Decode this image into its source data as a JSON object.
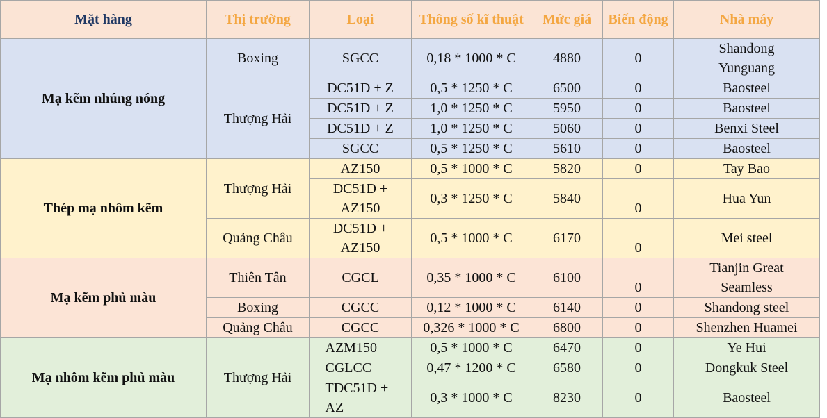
{
  "table": {
    "header": [
      "Mặt hàng",
      "Thị trường",
      "Loại",
      "Thông số kĩ thuật",
      "Mức giá",
      "Biến động",
      "Nhà máy"
    ],
    "groups": [
      {
        "product": "Mạ kẽm nhúng nóng",
        "color": "#d9e1f2",
        "markets": [
          {
            "name": "Boxing",
            "rows": [
              {
                "type": "SGCC",
                "spec": "0,18 * 1000 * C",
                "price": 4880,
                "change": 0,
                "factory": "Shandong Yunguang"
              }
            ]
          },
          {
            "name": "Thượng Hải",
            "rows": [
              {
                "type": "DC51D + Z",
                "spec": "0,5 * 1250 * C",
                "price": 6500,
                "change": 0,
                "factory": "Baosteel"
              },
              {
                "type": "DC51D + Z",
                "spec": "1,0 * 1250 * C",
                "price": 5950,
                "change": 0,
                "factory": "Baosteel"
              },
              {
                "type": "DC51D + Z",
                "spec": "1,0 * 1250 * C",
                "price": 5060,
                "change": 0,
                "factory": "Benxi Steel"
              },
              {
                "type": "SGCC",
                "spec": "0,5 * 1250 * C",
                "price": 5610,
                "change": 0,
                "factory": "Baosteel"
              }
            ]
          }
        ]
      },
      {
        "product": "Thép mạ nhôm kẽm",
        "color": "#fff2cc",
        "markets": [
          {
            "name": "Thượng Hải",
            "rows": [
              {
                "type": "AZ150",
                "spec": "0,5 * 1000 * C",
                "price": 5820,
                "change": 0,
                "factory": "Tay Bao"
              },
              {
                "type": "DC51D + AZ150",
                "spec": "0,3 * 1250 * C",
                "price": 5840,
                "change": 0,
                "factory": "Hua Yun"
              }
            ]
          },
          {
            "name": "Quảng Châu",
            "rows": [
              {
                "type": "DC51D + AZ150",
                "spec": "0,5 * 1000 * C",
                "price": 6170,
                "change": 0,
                "factory": "Mei steel"
              }
            ]
          }
        ]
      },
      {
        "product": "Mạ kẽm phủ màu",
        "color": "#fce4d6",
        "markets": [
          {
            "name": "Thiên Tân",
            "rows": [
              {
                "type": "CGCL",
                "spec": "0,35 * 1000 * C",
                "price": 6100,
                "change": 0,
                "factory": "Tianjin Great Seamless"
              }
            ]
          },
          {
            "name": "Boxing",
            "rows": [
              {
                "type": "CGCC",
                "spec": "0,12 * 1000 * C",
                "price": 6140,
                "change": 0,
                "factory": "Shandong steel"
              }
            ]
          },
          {
            "name": "Quảng Châu",
            "rows": [
              {
                "type": "CGCC",
                "spec": "0,326 * 1000 * C",
                "price": 6800,
                "change": 0,
                "factory": "Shenzhen Huamei"
              }
            ]
          }
        ]
      },
      {
        "product": "Mạ nhôm kẽm phủ màu",
        "color": "#e2efda",
        "markets": [
          {
            "name": "Thượng Hải",
            "rows": [
              {
                "type": "AZM150",
                "spec": "0,5 * 1000 * C",
                "price": 6470,
                "change": 0,
                "factory": "Ye Hui"
              },
              {
                "type": "CGLCC",
                "spec": "0,47 * 1200 * C",
                "price": 6580,
                "change": 0,
                "factory": "Dongkuk Steel"
              },
              {
                "type": "TDC51D + AZ",
                "spec": "0,3 * 1000 * C",
                "price": 8230,
                "change": 0,
                "factory": "Baosteel"
              }
            ]
          }
        ]
      }
    ]
  }
}
